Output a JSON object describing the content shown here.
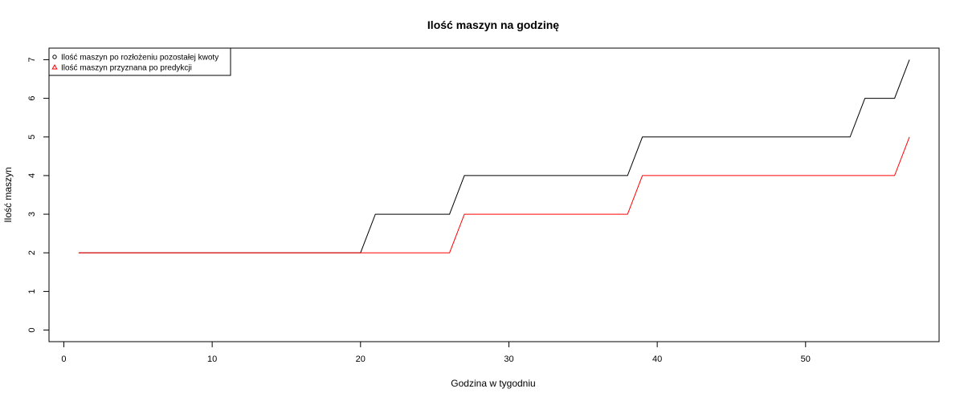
{
  "chart_data": {
    "type": "line",
    "title": "Ilość maszyn na godzinę",
    "xlabel": "Godzina w tygodniu",
    "ylabel": "Ilość maszyn",
    "xlim": [
      -1,
      59
    ],
    "ylim": [
      -0.3,
      7.3
    ],
    "xticks": [
      0,
      10,
      20,
      30,
      40,
      50
    ],
    "yticks": [
      0,
      1,
      2,
      3,
      4,
      5,
      6,
      7
    ],
    "grid": false,
    "legend_position": "top-left",
    "series": [
      {
        "name": "Ilość maszyn po rozłożeniu pozostałej kwoty",
        "color": "#000000",
        "marker": "circle",
        "x": [
          1,
          20,
          21,
          26,
          27,
          38,
          39,
          53,
          54,
          56,
          57
        ],
        "y": [
          2,
          2,
          3,
          3,
          4,
          4,
          5,
          5,
          6,
          6,
          7
        ]
      },
      {
        "name": "Ilość maszyn przyznana po predykcji",
        "color": "#ff0000",
        "marker": "triangle",
        "x": [
          1,
          26,
          27,
          38,
          39,
          56,
          57
        ],
        "y": [
          2,
          2,
          3,
          3,
          4,
          4,
          5
        ]
      }
    ]
  }
}
